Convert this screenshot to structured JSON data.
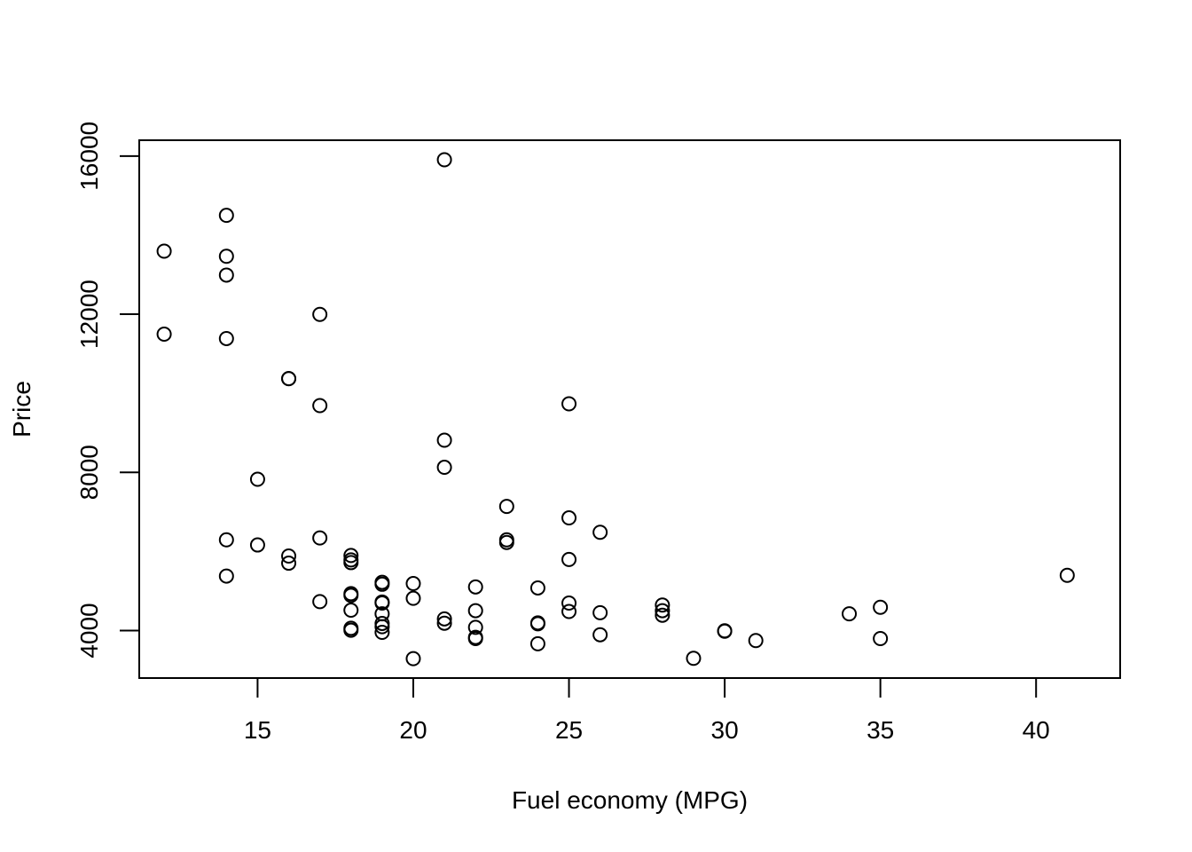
{
  "chart_data": {
    "type": "scatter",
    "title": "",
    "xlabel": "Fuel economy (MPG)",
    "ylabel": "Price",
    "xlim": [
      11.2,
      42.7
    ],
    "ylim": [
      2800,
      16400
    ],
    "xticks": [
      15,
      20,
      25,
      30,
      35,
      40
    ],
    "yticks": [
      4000,
      8000,
      12000,
      16000
    ],
    "grid": false,
    "marker": "open-circle",
    "series": [
      {
        "points": [
          [
            12,
            13594
          ],
          [
            12,
            11497
          ],
          [
            14,
            14500
          ],
          [
            14,
            13466
          ],
          [
            14,
            12990
          ],
          [
            14,
            11385
          ],
          [
            14,
            6295
          ],
          [
            14,
            5379
          ],
          [
            15,
            7827
          ],
          [
            15,
            6165
          ],
          [
            16,
            10372
          ],
          [
            16,
            10371
          ],
          [
            16,
            5886
          ],
          [
            16,
            5705
          ],
          [
            17,
            11995
          ],
          [
            17,
            9690
          ],
          [
            17,
            6342
          ],
          [
            17,
            4733
          ],
          [
            18,
            5899
          ],
          [
            18,
            5788
          ],
          [
            18,
            5719
          ],
          [
            18,
            4890
          ],
          [
            18,
            4934
          ],
          [
            18,
            4516
          ],
          [
            18,
            4060
          ],
          [
            18,
            4010
          ],
          [
            19,
            5222
          ],
          [
            19,
            5172
          ],
          [
            19,
            4723
          ],
          [
            19,
            4697
          ],
          [
            19,
            4425
          ],
          [
            19,
            4181
          ],
          [
            19,
            4099
          ],
          [
            19,
            3955
          ],
          [
            20,
            5189
          ],
          [
            20,
            4816
          ],
          [
            20,
            3291
          ],
          [
            21,
            15906
          ],
          [
            21,
            8814
          ],
          [
            21,
            8129
          ],
          [
            21,
            4296
          ],
          [
            21,
            4187
          ],
          [
            22,
            5104
          ],
          [
            22,
            4504
          ],
          [
            22,
            4082
          ],
          [
            22,
            3798
          ],
          [
            22,
            3829
          ],
          [
            23,
            7140
          ],
          [
            23,
            6295
          ],
          [
            23,
            6229
          ],
          [
            24,
            5079
          ],
          [
            24,
            4195
          ],
          [
            24,
            4172
          ],
          [
            24,
            3667
          ],
          [
            25,
            9735
          ],
          [
            25,
            6850
          ],
          [
            25,
            5798
          ],
          [
            25,
            4697
          ],
          [
            25,
            4482
          ],
          [
            26,
            6486
          ],
          [
            26,
            4453
          ],
          [
            26,
            3895
          ],
          [
            28,
            4647
          ],
          [
            28,
            4504
          ],
          [
            28,
            4389
          ],
          [
            29,
            3299
          ],
          [
            30,
            3995
          ],
          [
            30,
            3984
          ],
          [
            31,
            3748
          ],
          [
            34,
            4425
          ],
          [
            35,
            4589
          ],
          [
            35,
            3798
          ],
          [
            41,
            5397
          ]
        ]
      }
    ]
  }
}
